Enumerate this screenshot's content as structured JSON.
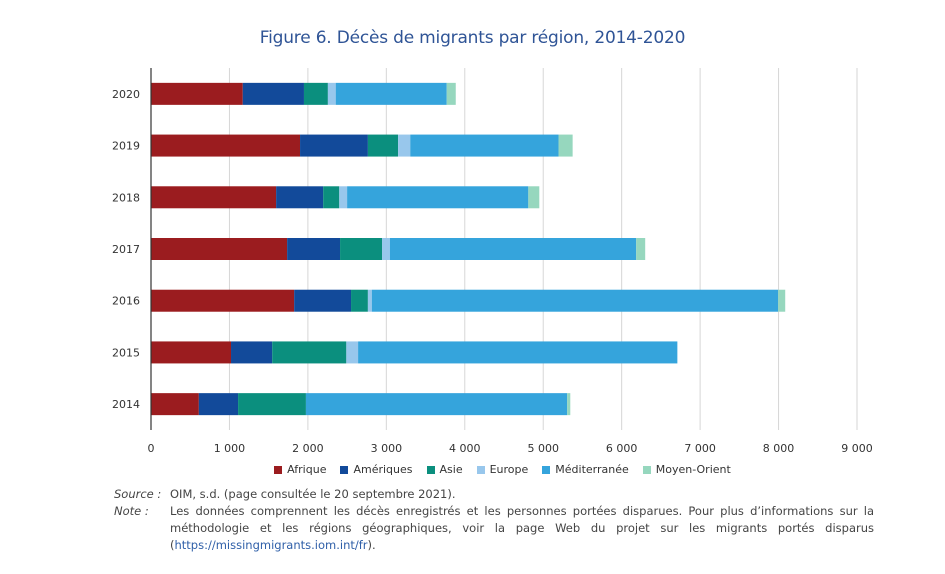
{
  "chart_data": {
    "type": "bar",
    "orientation": "horizontal",
    "stacked": true,
    "title": "Figure 6. Décès de migrants par région, 2014-2020",
    "xlabel": "",
    "ylabel": "",
    "xlim": [
      0,
      9000
    ],
    "x_ticks": [
      0,
      1000,
      2000,
      3000,
      4000,
      5000,
      6000,
      7000,
      8000,
      9000
    ],
    "x_tick_labels": [
      "0",
      "1 000",
      "2 000",
      "3 000",
      "4 000",
      "5 000",
      "6 000",
      "7 000",
      "8 000",
      "9 000"
    ],
    "grid": "vertical",
    "legend_position": "bottom",
    "categories": [
      "2020",
      "2019",
      "2018",
      "2017",
      "2016",
      "2015",
      "2014"
    ],
    "series": [
      {
        "name": "Afrique",
        "color": "#9b1c1f",
        "values": [
          1170,
          1900,
          1595,
          1735,
          1825,
          1020,
          610
        ]
      },
      {
        "name": "Amériques",
        "color": "#124a9a",
        "values": [
          780,
          865,
          600,
          675,
          725,
          525,
          500
        ]
      },
      {
        "name": "Asie",
        "color": "#0b8f7e",
        "values": [
          305,
          385,
          205,
          535,
          215,
          945,
          865
        ]
      },
      {
        "name": "Europe",
        "color": "#98c7ec",
        "values": [
          100,
          155,
          100,
          100,
          50,
          150,
          0
        ]
      },
      {
        "name": "Méditerranée",
        "color": "#35a4dc",
        "values": [
          1415,
          1890,
          2310,
          3140,
          5180,
          4070,
          3330
        ]
      },
      {
        "name": "Moyen-Orient",
        "color": "#96d7be",
        "values": [
          115,
          180,
          140,
          115,
          90,
          0,
          40
        ]
      }
    ]
  },
  "footer": {
    "source_label": "Source :",
    "source_text": "OIM, s.d. (page consultée le 20 septembre 2021).",
    "note_label": "Note :",
    "note_text": "Les données comprennent les décès enregistrés et les personnes portées disparues. Pour plus d’informations sur la méthodologie et les régions géographiques, voir la page Web du projet sur les migrants portés disparus (",
    "note_link": "https://missingmigrants.iom.int/fr",
    "note_end": ")."
  }
}
